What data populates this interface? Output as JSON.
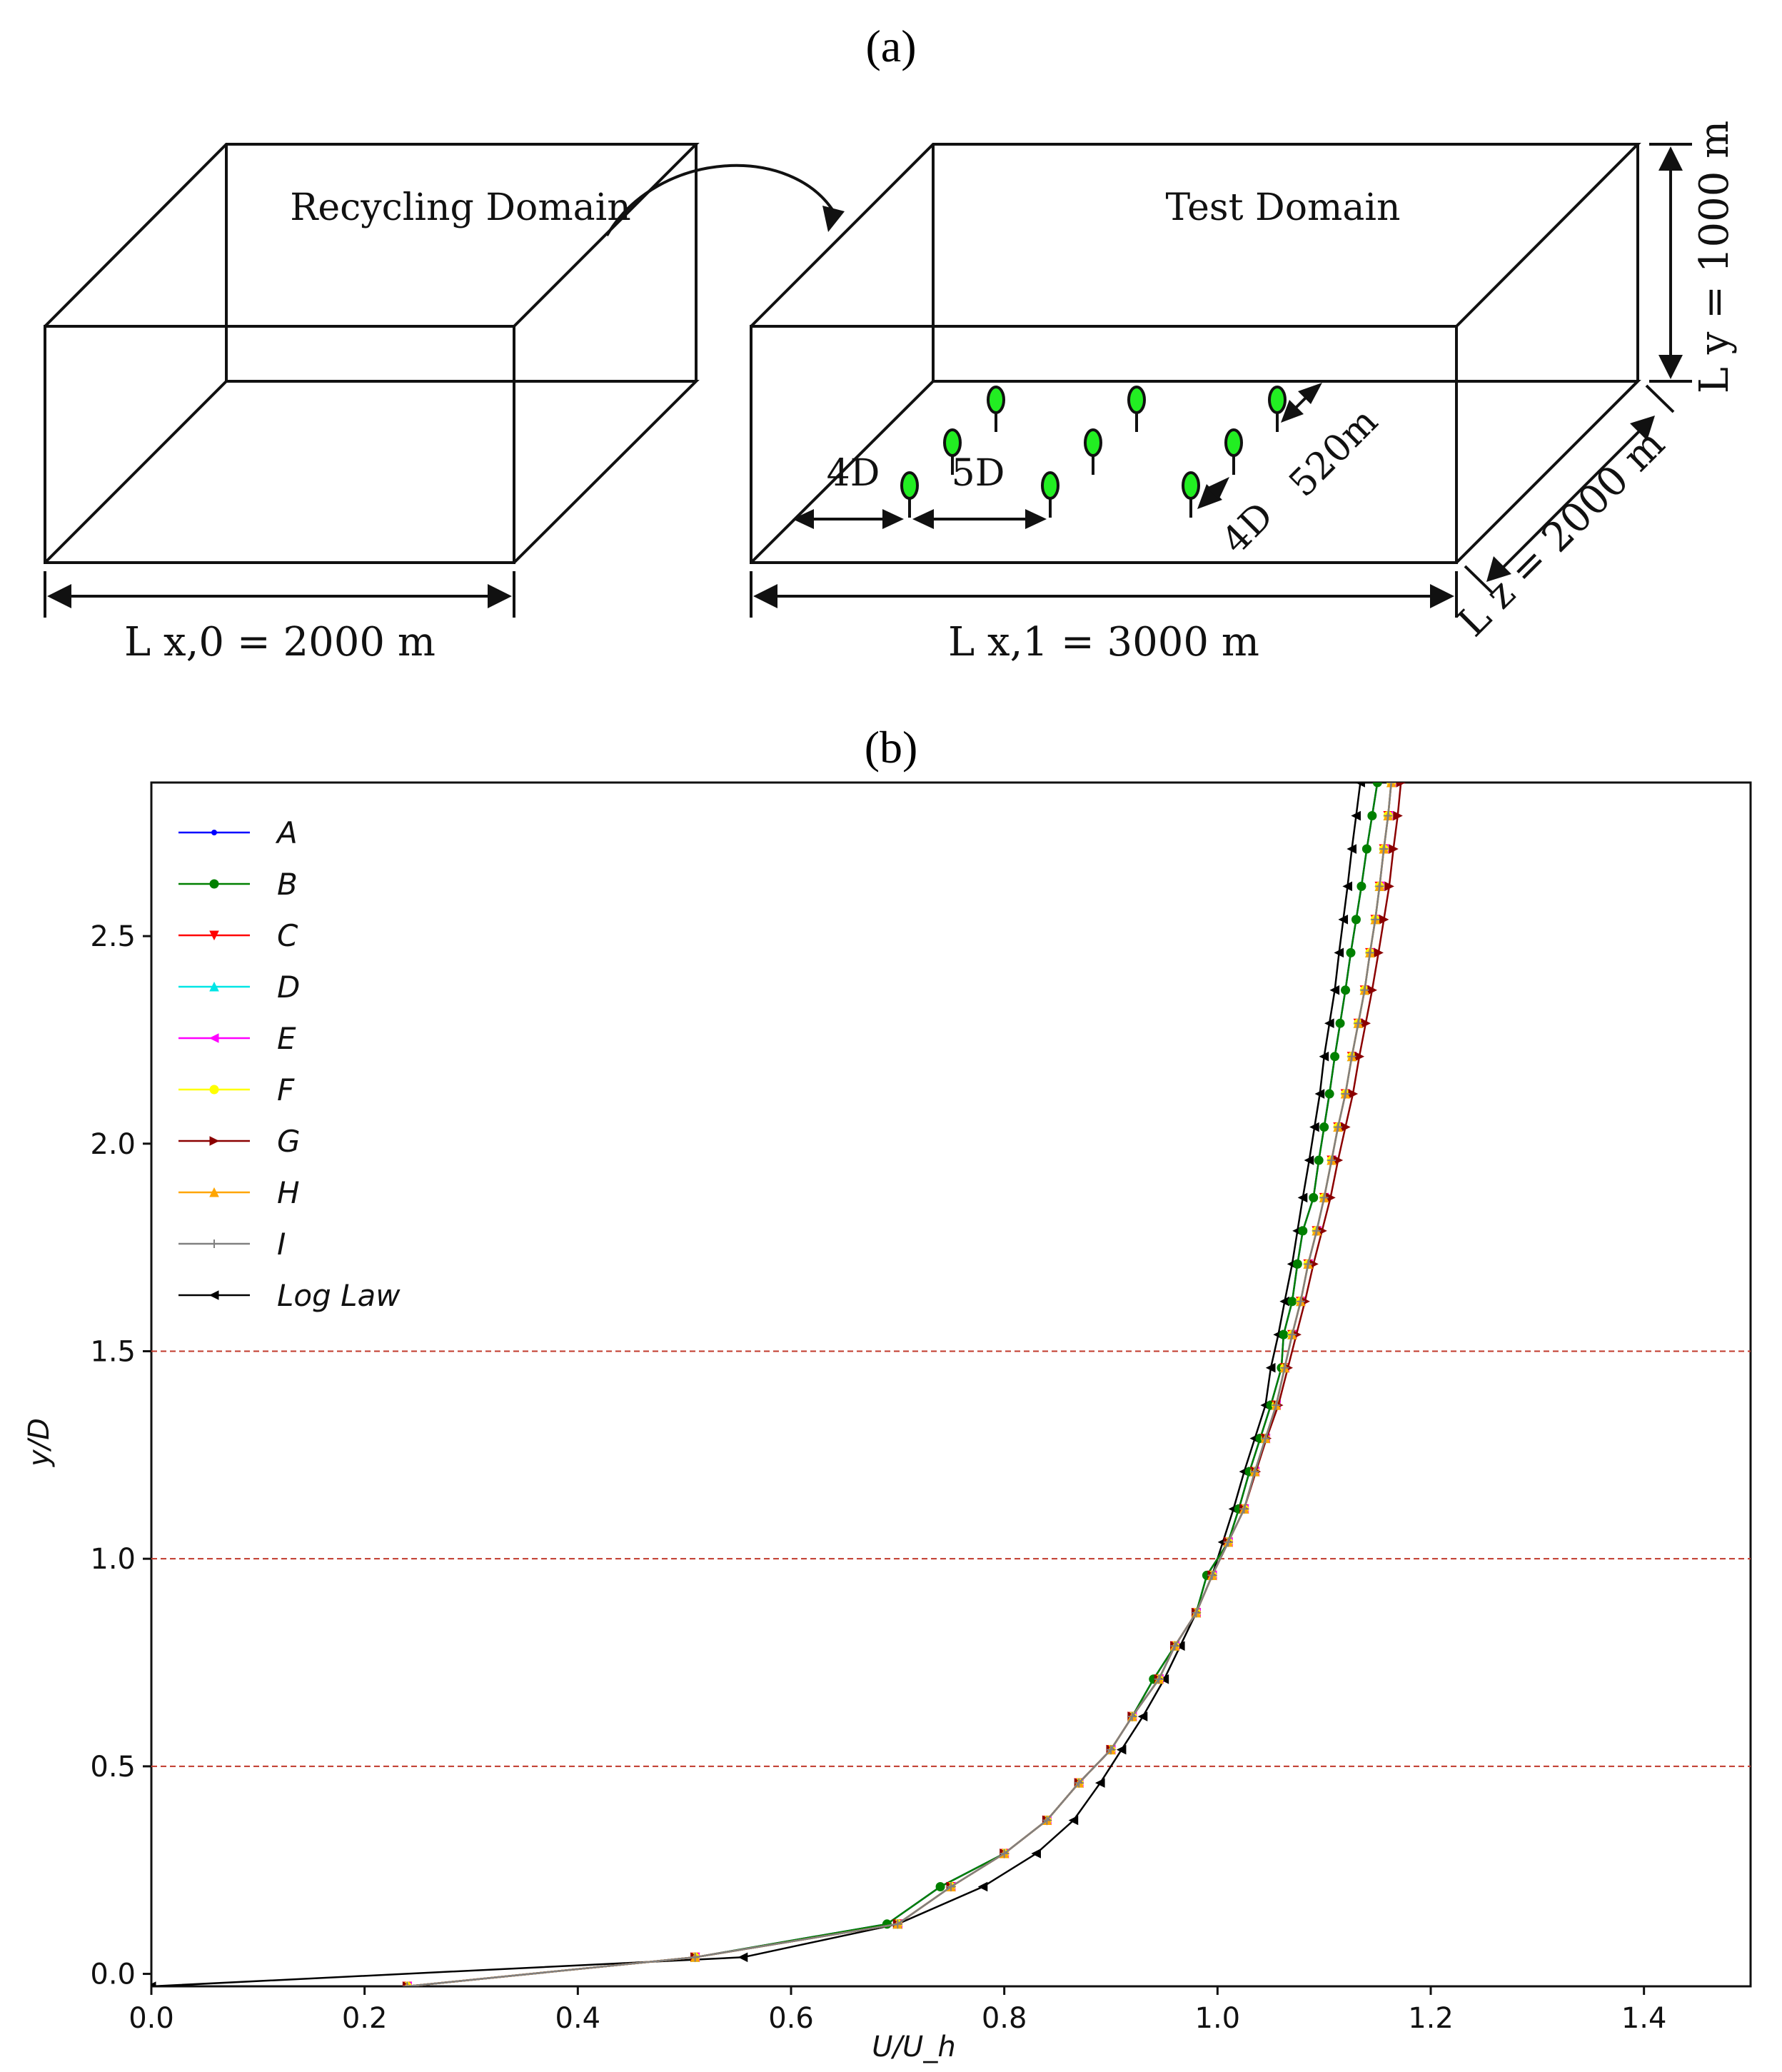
{
  "panel_a_label": "(a)",
  "panel_b_label": "(b)",
  "diagram": {
    "recycling_label": "Recycling Domain",
    "test_label": "Test Domain",
    "lx0_label": "L x,0 = 2000 m",
    "lx1_label": "L x,1 = 3000 m",
    "lz_label": "L z = 2000 m",
    "ly_label": "L y = 1000 m",
    "spacing_4d": "4D",
    "spacing_5d": "5D",
    "spacing_4d_lateral": "4D",
    "span_520": "520m",
    "turbine_color": "#22ee22"
  },
  "chart_data": {
    "type": "line",
    "title": "",
    "xlabel": "U/U_h",
    "ylabel": "y/D",
    "xlim": [
      0.0,
      1.5
    ],
    "ylim": [
      -0.03,
      2.87
    ],
    "xticks": [
      "0.0",
      "0.2",
      "0.4",
      "0.6",
      "0.8",
      "1.0",
      "1.2",
      "1.4"
    ],
    "yticks": [
      "0.0",
      "0.5",
      "1.0",
      "1.5",
      "2.0",
      "2.5"
    ],
    "hlines": [
      0.5,
      1.0,
      1.5
    ],
    "hline_color": "#c0392b",
    "y": [
      -0.03,
      0.04,
      0.12,
      0.21,
      0.29,
      0.37,
      0.46,
      0.54,
      0.62,
      0.71,
      0.79,
      0.87,
      0.96,
      1.04,
      1.12,
      1.21,
      1.29,
      1.37,
      1.46,
      1.54,
      1.62,
      1.71,
      1.79,
      1.87,
      1.96,
      2.04,
      2.12,
      2.21,
      2.29,
      2.37,
      2.46,
      2.54,
      2.62,
      2.71,
      2.79,
      2.87
    ],
    "series": [
      {
        "name": "A",
        "color": "#0000ff",
        "marker": "dot",
        "values": [
          0.24,
          0.51,
          0.69,
          0.74,
          0.8,
          0.84,
          0.87,
          0.9,
          0.92,
          0.94,
          0.96,
          0.98,
          0.99,
          1.01,
          1.02,
          1.03,
          1.04,
          1.05,
          1.06,
          1.062,
          1.07,
          1.075,
          1.08,
          1.09,
          1.095,
          1.1,
          1.105,
          1.11,
          1.115,
          1.12,
          1.125,
          1.13,
          1.135,
          1.14,
          1.145,
          1.15
        ]
      },
      {
        "name": "B",
        "color": "#008000",
        "marker": "circle",
        "values": [
          0.24,
          0.51,
          0.69,
          0.74,
          0.8,
          0.84,
          0.87,
          0.9,
          0.92,
          0.94,
          0.96,
          0.98,
          0.99,
          1.01,
          1.02,
          1.03,
          1.04,
          1.05,
          1.06,
          1.062,
          1.07,
          1.075,
          1.08,
          1.09,
          1.095,
          1.1,
          1.105,
          1.11,
          1.115,
          1.12,
          1.125,
          1.13,
          1.135,
          1.14,
          1.145,
          1.15
        ]
      },
      {
        "name": "C",
        "color": "#ff0000",
        "marker": "tri-down",
        "values": [
          0.24,
          0.51,
          0.7,
          0.75,
          0.8,
          0.84,
          0.87,
          0.9,
          0.92,
          0.945,
          0.96,
          0.98,
          0.995,
          1.01,
          1.025,
          1.035,
          1.045,
          1.055,
          1.063,
          1.07,
          1.078,
          1.085,
          1.093,
          1.1,
          1.107,
          1.113,
          1.12,
          1.126,
          1.132,
          1.138,
          1.143,
          1.148,
          1.152,
          1.156,
          1.16,
          1.163
        ]
      },
      {
        "name": "D",
        "color": "#00e5e5",
        "marker": "tri-up",
        "values": [
          0.24,
          0.51,
          0.7,
          0.75,
          0.8,
          0.84,
          0.87,
          0.9,
          0.92,
          0.945,
          0.96,
          0.98,
          0.995,
          1.01,
          1.025,
          1.035,
          1.045,
          1.055,
          1.063,
          1.07,
          1.078,
          1.085,
          1.093,
          1.1,
          1.107,
          1.113,
          1.12,
          1.126,
          1.132,
          1.138,
          1.143,
          1.148,
          1.152,
          1.156,
          1.16,
          1.163
        ]
      },
      {
        "name": "E",
        "color": "#ff00ff",
        "marker": "tri-left",
        "values": [
          0.24,
          0.51,
          0.7,
          0.75,
          0.8,
          0.84,
          0.87,
          0.9,
          0.92,
          0.945,
          0.96,
          0.98,
          0.995,
          1.01,
          1.025,
          1.035,
          1.045,
          1.055,
          1.063,
          1.07,
          1.078,
          1.085,
          1.093,
          1.1,
          1.107,
          1.113,
          1.12,
          1.126,
          1.132,
          1.138,
          1.143,
          1.148,
          1.152,
          1.156,
          1.16,
          1.163
        ]
      },
      {
        "name": "F",
        "color": "#ffff00",
        "marker": "circle",
        "values": [
          0.24,
          0.51,
          0.7,
          0.75,
          0.8,
          0.84,
          0.87,
          0.9,
          0.92,
          0.945,
          0.96,
          0.98,
          0.995,
          1.01,
          1.025,
          1.035,
          1.045,
          1.055,
          1.063,
          1.07,
          1.078,
          1.085,
          1.093,
          1.1,
          1.107,
          1.113,
          1.12,
          1.126,
          1.132,
          1.138,
          1.143,
          1.148,
          1.152,
          1.156,
          1.16,
          1.163
        ]
      },
      {
        "name": "G",
        "color": "#8b0000",
        "marker": "tri-right",
        "values": [
          0.24,
          0.51,
          0.7,
          0.75,
          0.8,
          0.84,
          0.87,
          0.9,
          0.92,
          0.945,
          0.96,
          0.98,
          0.995,
          1.01,
          1.025,
          1.036,
          1.046,
          1.057,
          1.066,
          1.074,
          1.082,
          1.09,
          1.098,
          1.106,
          1.113,
          1.12,
          1.127,
          1.133,
          1.139,
          1.145,
          1.151,
          1.156,
          1.161,
          1.165,
          1.169,
          1.172
        ]
      },
      {
        "name": "H",
        "color": "#ffa500",
        "marker": "tri-up",
        "values": [
          0.24,
          0.51,
          0.7,
          0.75,
          0.8,
          0.84,
          0.87,
          0.9,
          0.92,
          0.945,
          0.96,
          0.98,
          0.995,
          1.01,
          1.025,
          1.035,
          1.045,
          1.055,
          1.063,
          1.07,
          1.078,
          1.085,
          1.093,
          1.1,
          1.107,
          1.113,
          1.12,
          1.126,
          1.132,
          1.138,
          1.143,
          1.148,
          1.152,
          1.156,
          1.16,
          1.163
        ]
      },
      {
        "name": "I",
        "color": "#808080",
        "marker": "plus",
        "values": [
          0.24,
          0.51,
          0.7,
          0.75,
          0.8,
          0.84,
          0.87,
          0.9,
          0.92,
          0.945,
          0.96,
          0.98,
          0.995,
          1.01,
          1.025,
          1.035,
          1.045,
          1.055,
          1.063,
          1.07,
          1.078,
          1.085,
          1.093,
          1.1,
          1.107,
          1.113,
          1.12,
          1.126,
          1.132,
          1.138,
          1.143,
          1.148,
          1.152,
          1.156,
          1.16,
          1.163
        ]
      },
      {
        "name": "Log Law",
        "color": "#000000",
        "marker": "tri-left",
        "x": [
          0.0,
          0.555,
          0.7,
          0.78,
          0.83,
          0.865,
          0.89,
          0.91,
          0.93,
          0.95,
          0.965,
          0.98,
          0.995,
          1.005,
          1.015,
          1.025,
          1.035,
          1.045,
          1.05,
          1.057,
          1.063,
          1.07,
          1.075,
          1.08,
          1.086,
          1.091,
          1.096,
          1.1,
          1.105,
          1.11,
          1.114,
          1.118,
          1.122,
          1.126,
          1.13,
          1.134
        ],
        "yv": [
          -0.03,
          0.04,
          0.12,
          0.21,
          0.29,
          0.37,
          0.46,
          0.54,
          0.62,
          0.71,
          0.79,
          0.87,
          0.96,
          1.04,
          1.12,
          1.21,
          1.29,
          1.37,
          1.46,
          1.54,
          1.62,
          1.71,
          1.79,
          1.87,
          1.96,
          2.04,
          2.12,
          2.21,
          2.29,
          2.37,
          2.46,
          2.54,
          2.62,
          2.71,
          2.79,
          2.87
        ]
      }
    ]
  }
}
